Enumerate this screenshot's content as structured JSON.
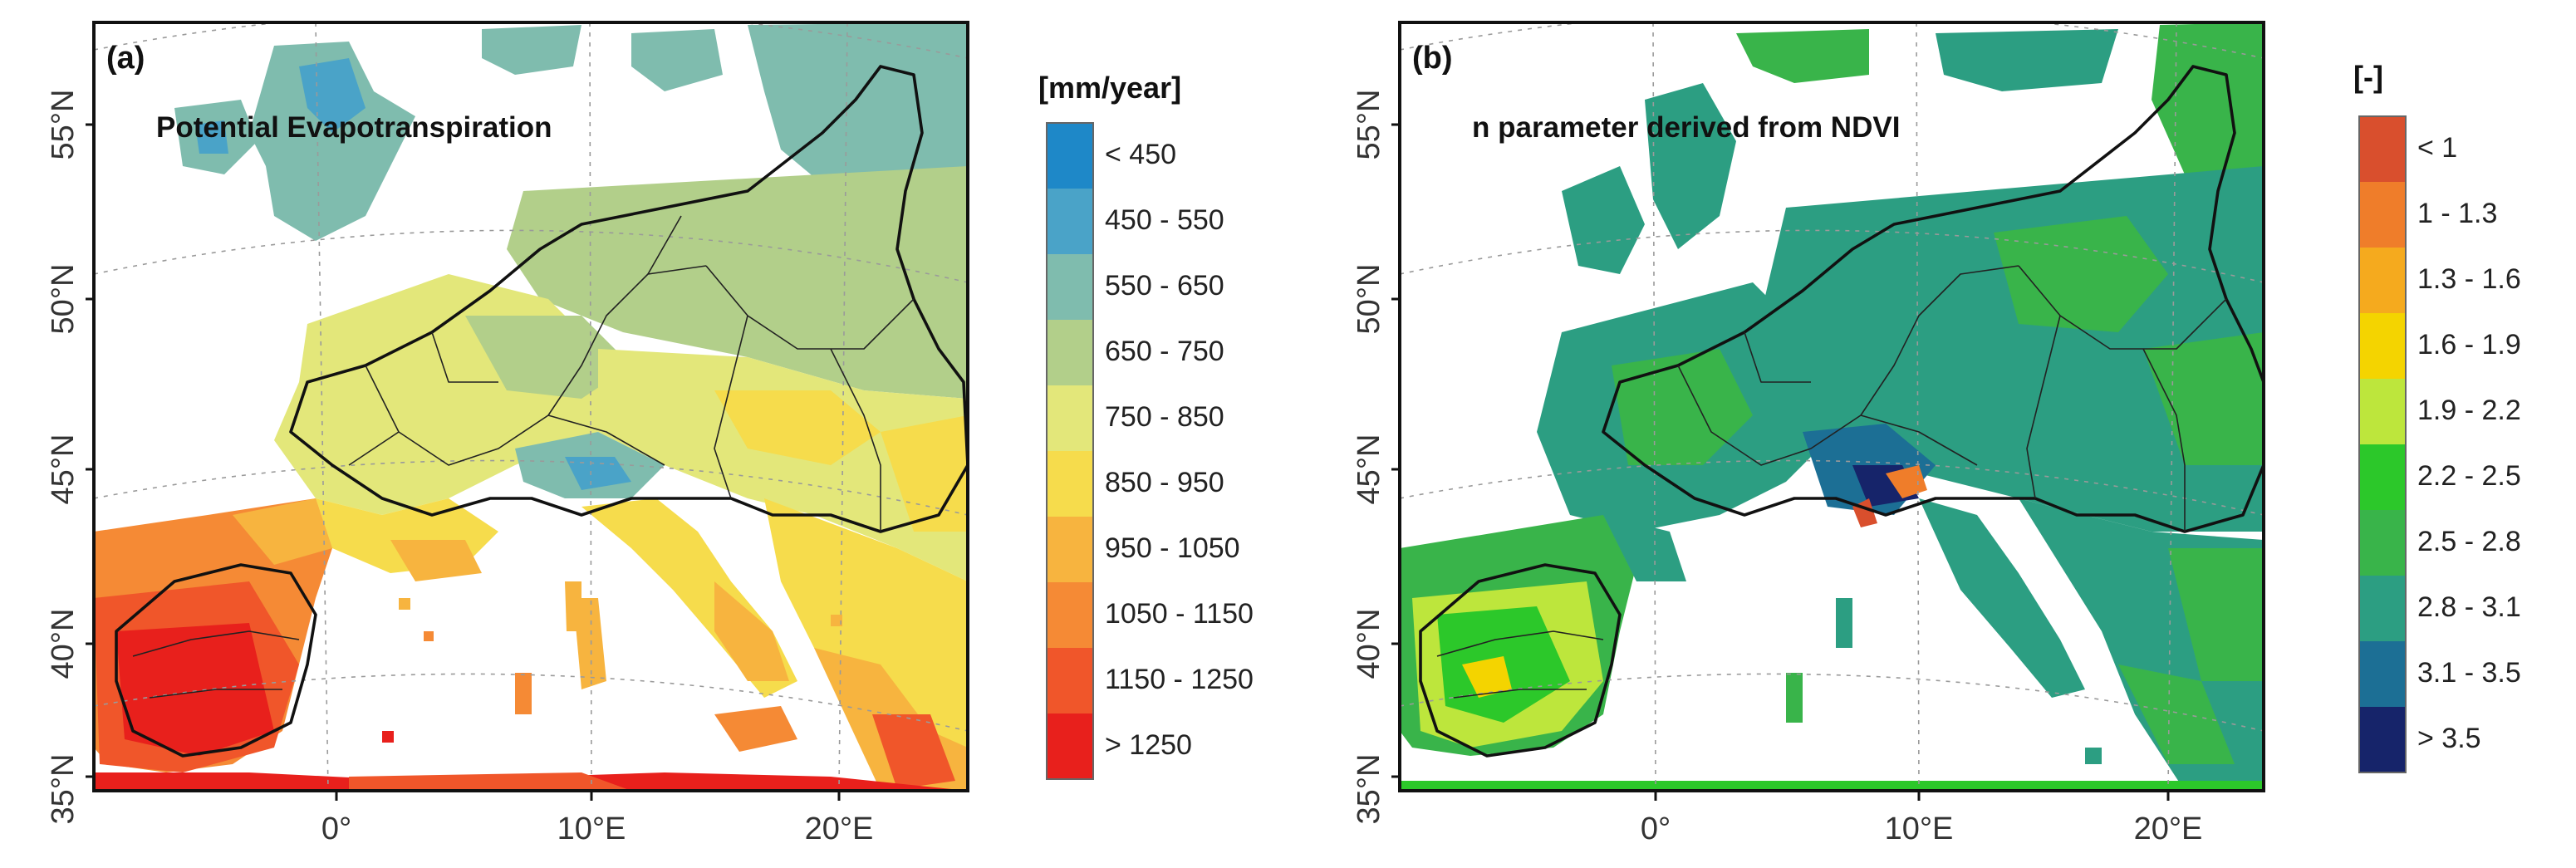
{
  "panels": [
    {
      "id": "a",
      "tag": "(a)",
      "title": "Potential Evapotranspiration",
      "legend_unit": "[mm/year]",
      "legend": [
        {
          "label": "< 450",
          "color": "#1e88c8"
        },
        {
          "label": "450 - 550",
          "color": "#4aa3c8"
        },
        {
          "label": "550 - 650",
          "color": "#7fbcae"
        },
        {
          "label": "650 - 750",
          "color": "#b2cf8a"
        },
        {
          "label": "750 - 850",
          "color": "#e3e77a"
        },
        {
          "label": "850 - 950",
          "color": "#f6dc4c"
        },
        {
          "label": "950 - 1050",
          "color": "#f7b43f"
        },
        {
          "label": "1050 - 1150",
          "color": "#f58a35"
        },
        {
          "label": "1150 - 1250",
          "color": "#f0562a"
        },
        {
          "label": "> 1250",
          "color": "#e8201c"
        }
      ]
    },
    {
      "id": "b",
      "tag": "(b)",
      "title": "n parameter derived from NDVI",
      "legend_unit": "[-]",
      "legend": [
        {
          "label": "< 1",
          "color": "#d94f2d"
        },
        {
          "label": "1 - 1.3",
          "color": "#ef7d2a"
        },
        {
          "label": "1.3 - 1.6",
          "color": "#f5aa1e"
        },
        {
          "label": "1.6 - 1.9",
          "color": "#f4d400"
        },
        {
          "label": "1.9 - 2.2",
          "color": "#bde63c"
        },
        {
          "label": "2.2 - 2.5",
          "color": "#2cc82a"
        },
        {
          "label": "2.5 - 2.8",
          "color": "#39b44a"
        },
        {
          "label": "2.8 - 3.1",
          "color": "#2c9e82"
        },
        {
          "label": "3.1 - 3.5",
          "color": "#1c6f95"
        },
        {
          "label": "> 3.5",
          "color": "#16246a"
        }
      ]
    }
  ],
  "lat_labels": [
    "55°N",
    "50°N",
    "45°N",
    "40°N",
    "35°N"
  ],
  "lon_labels": [
    "0°",
    "10°E",
    "20°E"
  ]
}
